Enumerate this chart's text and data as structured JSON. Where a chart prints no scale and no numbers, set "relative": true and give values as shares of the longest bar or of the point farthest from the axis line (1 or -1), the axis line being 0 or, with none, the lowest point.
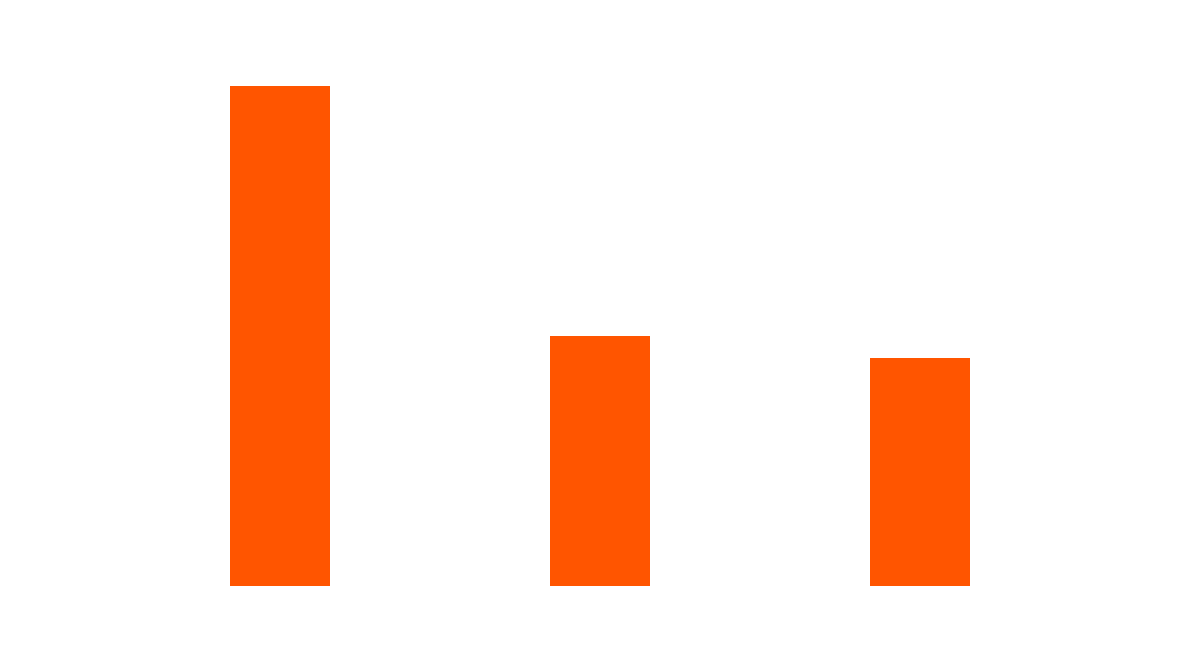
{
  "chart_data": {
    "type": "bar",
    "relative": true,
    "categories": [
      null,
      null,
      null
    ],
    "values": [
      1,
      0.5,
      0.456
    ],
    "color": "#ff5500"
  }
}
